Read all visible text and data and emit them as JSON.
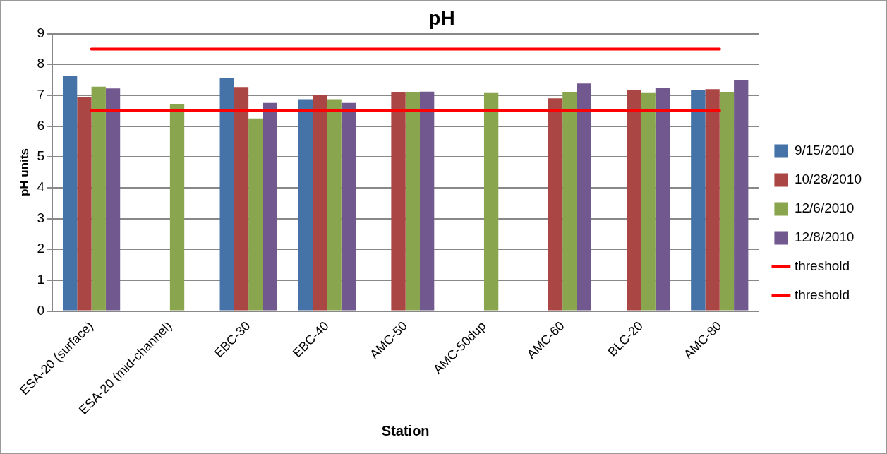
{
  "chart_data": {
    "type": "bar",
    "title": "pH",
    "xlabel": "Station",
    "ylabel": "pH units",
    "categories": [
      "ESA-20 (surface)",
      "ESA-20 (mid-channel)",
      "EBC-30",
      "EBC-40",
      "AMC-50",
      "AMC-50dup",
      "AMC-60",
      "BLC-20",
      "AMC-80"
    ],
    "series": [
      {
        "name": "9/15/2010",
        "color": "#4572a7",
        "values": [
          7.63,
          null,
          7.57,
          6.87,
          null,
          null,
          null,
          null,
          7.16
        ]
      },
      {
        "name": "10/28/2010",
        "color": "#aa4643",
        "values": [
          6.93,
          null,
          7.27,
          7.0,
          7.1,
          null,
          6.9,
          7.18,
          7.2
        ]
      },
      {
        "name": "12/6/2010",
        "color": "#89a54e",
        "values": [
          7.28,
          6.7,
          6.25,
          6.87,
          7.1,
          7.07,
          7.1,
          7.07,
          7.1
        ]
      },
      {
        "name": "12/8/2010",
        "color": "#71588f",
        "values": [
          7.22,
          null,
          6.75,
          6.75,
          7.12,
          null,
          7.38,
          7.23,
          7.48
        ]
      },
      {
        "name": "threshold",
        "type": "line",
        "color": "#ff0000",
        "values": [
          8.5,
          8.5,
          8.5,
          8.5,
          8.5,
          8.5,
          8.5,
          8.5,
          8.5
        ]
      },
      {
        "name": "threshold",
        "type": "line",
        "color": "#ff0000",
        "values": [
          6.5,
          6.5,
          6.5,
          6.5,
          6.5,
          6.5,
          6.5,
          6.5,
          6.5
        ]
      }
    ],
    "ylim": [
      0,
      9
    ],
    "yticks": [
      0,
      1,
      2,
      3,
      4,
      5,
      6,
      7,
      8,
      9
    ],
    "grid": "y",
    "legend": "right",
    "marker": "none"
  }
}
